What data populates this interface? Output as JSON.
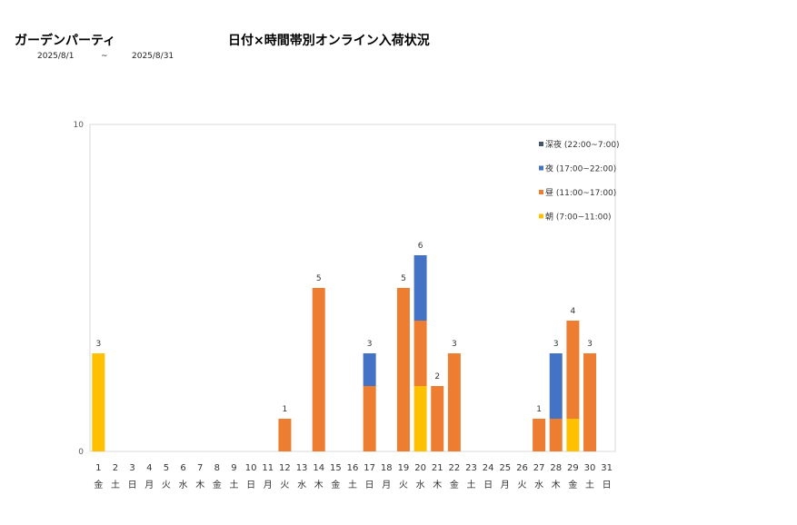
{
  "header": {
    "store_name": "ガーデンパーティ",
    "title": "日付×時間帯別オンライン入荷状況",
    "date_from": "2025/8/1",
    "date_sep": "~",
    "date_to": "2025/8/31"
  },
  "chart_data": {
    "type": "bar",
    "stacked": true,
    "title": "日付×時間帯別オンライン入荷状況",
    "ylim": [
      0,
      10
    ],
    "yticks": [
      0,
      10
    ],
    "grid": false,
    "legend_position": "top-right",
    "days": [
      "1",
      "2",
      "3",
      "4",
      "5",
      "6",
      "7",
      "8",
      "9",
      "10",
      "11",
      "12",
      "13",
      "14",
      "15",
      "16",
      "17",
      "18",
      "19",
      "20",
      "21",
      "22",
      "23",
      "24",
      "25",
      "26",
      "27",
      "28",
      "29",
      "30",
      "31"
    ],
    "weekdays": [
      "金",
      "土",
      "日",
      "月",
      "火",
      "水",
      "木",
      "金",
      "土",
      "日",
      "月",
      "火",
      "水",
      "木",
      "金",
      "土",
      "日",
      "月",
      "火",
      "水",
      "木",
      "金",
      "土",
      "日",
      "月",
      "火",
      "水",
      "木",
      "金",
      "土",
      "日"
    ],
    "series": [
      {
        "name": "朝 (7:00~11:00)",
        "color": "#FFC000",
        "values": [
          3,
          0,
          0,
          0,
          0,
          0,
          0,
          0,
          0,
          0,
          0,
          0,
          0,
          0,
          0,
          0,
          0,
          0,
          0,
          2,
          0,
          0,
          0,
          0,
          0,
          0,
          0,
          0,
          1,
          0,
          0
        ]
      },
      {
        "name": "昼 (11:00~17:00)",
        "color": "#ED7D31",
        "values": [
          0,
          0,
          0,
          0,
          0,
          0,
          0,
          0,
          0,
          0,
          0,
          1,
          0,
          5,
          0,
          0,
          2,
          0,
          5,
          2,
          2,
          3,
          0,
          0,
          0,
          0,
          1,
          1,
          3,
          3,
          0
        ]
      },
      {
        "name": "夜 (17:00~22:00)",
        "color": "#4472C4",
        "values": [
          0,
          0,
          0,
          0,
          0,
          0,
          0,
          0,
          0,
          0,
          0,
          0,
          0,
          0,
          0,
          0,
          1,
          0,
          0,
          2,
          0,
          0,
          0,
          0,
          0,
          0,
          0,
          2,
          0,
          0,
          0
        ]
      },
      {
        "name": "深夜 (22:00~7:00)",
        "color": "#44546A",
        "values": [
          0,
          0,
          0,
          0,
          0,
          0,
          0,
          0,
          0,
          0,
          0,
          0,
          0,
          0,
          0,
          0,
          0,
          0,
          0,
          0,
          0,
          0,
          0,
          0,
          0,
          0,
          0,
          0,
          0,
          0,
          0
        ]
      }
    ],
    "totals": [
      3,
      0,
      0,
      0,
      0,
      0,
      0,
      0,
      0,
      0,
      0,
      1,
      0,
      5,
      0,
      0,
      3,
      0,
      5,
      6,
      2,
      3,
      0,
      0,
      0,
      0,
      1,
      3,
      4,
      3,
      0
    ]
  }
}
